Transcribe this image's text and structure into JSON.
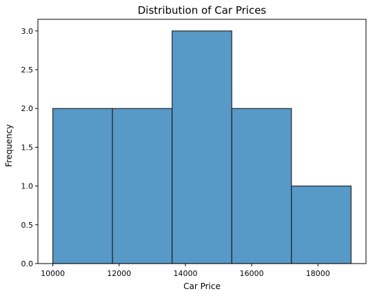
{
  "chart_data": {
    "type": "bar",
    "title": "Distribution of Car Prices",
    "xlabel": "Car Price",
    "ylabel": "Frequency",
    "bins": [
      {
        "start": 10000,
        "end": 11800,
        "count": 2
      },
      {
        "start": 11800,
        "end": 13600,
        "count": 2
      },
      {
        "start": 13600,
        "end": 15400,
        "count": 3
      },
      {
        "start": 15400,
        "end": 17200,
        "count": 2
      },
      {
        "start": 17200,
        "end": 19000,
        "count": 1
      }
    ],
    "xlim": [
      9550,
      19450
    ],
    "ylim": [
      0,
      3.15
    ],
    "xticks": [
      10000,
      12000,
      14000,
      16000,
      18000
    ],
    "yticks": [
      0.0,
      0.5,
      1.0,
      1.5,
      2.0,
      2.5,
      3.0
    ],
    "ytick_labels": [
      "0.0",
      "0.5",
      "1.0",
      "1.5",
      "2.0",
      "2.5",
      "3.0"
    ],
    "grid": false,
    "bar_color": "#5799c7",
    "edge_color": "#1a1a1a"
  }
}
